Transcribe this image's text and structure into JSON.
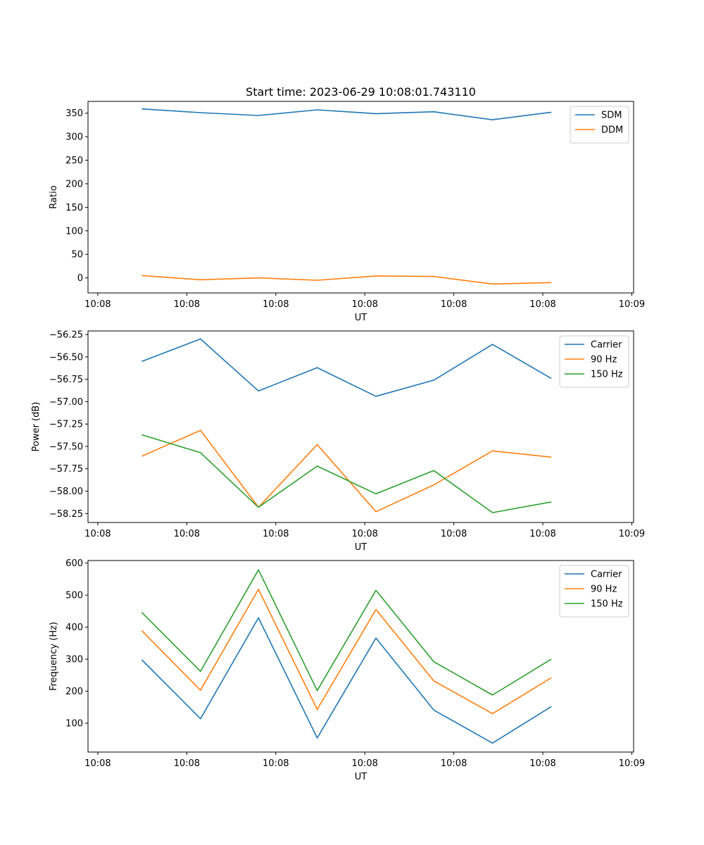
{
  "figure_title": "Start time: 2023-06-29 10:08:01.743110",
  "chart_data": [
    {
      "type": "line",
      "title": "Start time: 2023-06-29 10:08:01.743110",
      "xlabel": "UT",
      "ylabel": "Ratio",
      "x_tick_labels": [
        "10:08",
        "10:08",
        "10:08",
        "10:08",
        "10:08",
        "10:08",
        "10:09"
      ],
      "x_tick_seconds": [
        0,
        10,
        20,
        30,
        40,
        50,
        60
      ],
      "x_seconds": [
        4.94,
        11.54,
        18.05,
        24.65,
        31.25,
        37.75,
        44.35,
        50.95
      ],
      "xlim_seconds": [
        -1.1,
        60.2
      ],
      "ylim": [
        -32,
        375
      ],
      "yticks": [
        0,
        50,
        100,
        150,
        200,
        250,
        300,
        350
      ],
      "legend_location": "top-right",
      "series": [
        {
          "name": "SDM",
          "color": "#1f77b4",
          "values": [
            359,
            351,
            345,
            357,
            349,
            353,
            336,
            352
          ]
        },
        {
          "name": "DDM",
          "color": "#ff7f0e",
          "values": [
            5,
            -4,
            0,
            -5,
            4,
            3,
            -13,
            -10
          ]
        }
      ]
    },
    {
      "type": "line",
      "xlabel": "UT",
      "ylabel": "Power (dB)",
      "x_tick_labels": [
        "10:08",
        "10:08",
        "10:08",
        "10:08",
        "10:08",
        "10:08",
        "10:09"
      ],
      "x_tick_seconds": [
        0,
        10,
        20,
        30,
        40,
        50,
        60
      ],
      "x_seconds": [
        4.94,
        11.54,
        18.05,
        24.65,
        31.25,
        37.75,
        44.35,
        50.95
      ],
      "xlim_seconds": [
        -1.1,
        60.2
      ],
      "ylim": [
        -58.35,
        -56.21
      ],
      "yticks": [
        -58.25,
        -58.0,
        -57.75,
        -57.5,
        -57.25,
        -57.0,
        -56.75,
        -56.5,
        -56.25
      ],
      "ytick_labels": [
        "−58.25",
        "−58.00",
        "−57.75",
        "−57.50",
        "−57.25",
        "−57.00",
        "−56.75",
        "−56.50",
        "−56.25"
      ],
      "legend_location": "top-right",
      "series": [
        {
          "name": "Carrier",
          "color": "#1f77b4",
          "values": [
            -56.55,
            -56.3,
            -56.88,
            -56.62,
            -56.94,
            -56.76,
            -56.36,
            -56.74
          ]
        },
        {
          "name": "90 Hz",
          "color": "#ff7f0e",
          "values": [
            -57.61,
            -57.32,
            -58.18,
            -57.48,
            -58.23,
            -57.93,
            -57.55,
            -57.62
          ]
        },
        {
          "name": "150 Hz",
          "color": "#2ca02c",
          "values": [
            -57.37,
            -57.57,
            -58.18,
            -57.72,
            -58.03,
            -57.77,
            -58.24,
            -58.12
          ]
        }
      ]
    },
    {
      "type": "line",
      "xlabel": "UT",
      "ylabel": "Frequency (Hz)",
      "x_tick_labels": [
        "10:08",
        "10:08",
        "10:08",
        "10:08",
        "10:08",
        "10:08",
        "10:09"
      ],
      "x_tick_seconds": [
        0,
        10,
        20,
        30,
        40,
        50,
        60
      ],
      "x_seconds": [
        4.94,
        11.54,
        18.05,
        24.65,
        31.25,
        37.75,
        44.35,
        50.95
      ],
      "xlim_seconds": [
        -1.1,
        60.2
      ],
      "ylim": [
        10,
        608
      ],
      "yticks": [
        100,
        200,
        300,
        400,
        500,
        600
      ],
      "legend_location": "top-right",
      "series": [
        {
          "name": "Carrier",
          "color": "#1f77b4",
          "values": [
            298,
            114,
            429,
            54,
            366,
            141,
            38,
            152
          ]
        },
        {
          "name": "90 Hz",
          "color": "#ff7f0e",
          "values": [
            389,
            203,
            518,
            143,
            455,
            232,
            130,
            242
          ]
        },
        {
          "name": "150 Hz",
          "color": "#2ca02c",
          "values": [
            446,
            262,
            579,
            202,
            515,
            292,
            188,
            300
          ]
        }
      ]
    }
  ]
}
